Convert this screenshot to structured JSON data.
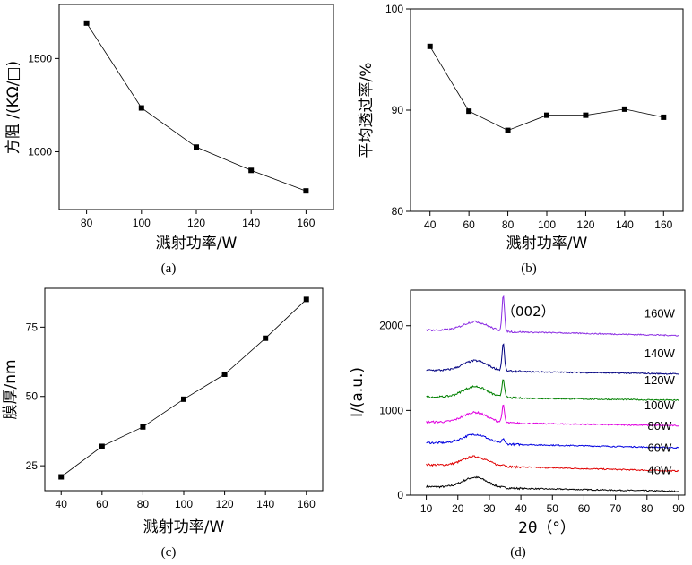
{
  "chart_data": [
    {
      "id": "a",
      "type": "line",
      "caption": "(a)",
      "xlabel": "溅射功率/W",
      "ylabel": "方阻 /(KΩ/□)",
      "x": [
        80,
        100,
        120,
        140,
        160
      ],
      "y": [
        1690,
        1235,
        1025,
        900,
        790
      ],
      "xlim": [
        70,
        170
      ],
      "ylim": [
        690,
        1790
      ],
      "xticks": [
        80,
        100,
        120,
        140,
        160
      ],
      "yticks": [
        1000,
        1500
      ],
      "marker": "square",
      "color": "#000000"
    },
    {
      "id": "b",
      "type": "line",
      "caption": "(b)",
      "xlabel": "溅射功率/W",
      "ylabel": "平均透过率/%",
      "x": [
        40,
        60,
        80,
        100,
        120,
        140,
        160
      ],
      "y": [
        96.3,
        89.9,
        88.0,
        89.5,
        89.5,
        90.1,
        89.3
      ],
      "xlim": [
        30,
        170
      ],
      "ylim": [
        80,
        100
      ],
      "xticks": [
        40,
        60,
        80,
        100,
        120,
        140,
        160
      ],
      "yticks": [
        80,
        90,
        100
      ],
      "marker": "square",
      "color": "#000000"
    },
    {
      "id": "c",
      "type": "line",
      "caption": "(c)",
      "xlabel": "溅射功率/W",
      "ylabel": "膜厚/nm",
      "x": [
        40,
        60,
        80,
        100,
        120,
        140,
        160
      ],
      "y": [
        21,
        32,
        39,
        49,
        58,
        71,
        85
      ],
      "xlim": [
        32,
        168
      ],
      "ylim": [
        16,
        89
      ],
      "xticks": [
        40,
        60,
        80,
        100,
        120,
        140,
        160
      ],
      "yticks": [
        25,
        50,
        75
      ],
      "marker": "square",
      "color": "#000000"
    },
    {
      "id": "d",
      "type": "line",
      "caption": "(d)",
      "xlabel": "2θ（°）",
      "ylabel": "I/(a.u.)",
      "xlim": [
        5,
        92
      ],
      "ylim": [
        0,
        2420
      ],
      "xticks": [
        10,
        20,
        30,
        40,
        50,
        60,
        70,
        80,
        90
      ],
      "yticks": [
        0,
        1000,
        2000
      ],
      "annotation": "（002）",
      "series": [
        {
          "name": "40W",
          "color": "#000000",
          "baseline": 100,
          "hump": 120,
          "tail": -55,
          "peak": 0,
          "noise": 18
        },
        {
          "name": "60W",
          "color": "#e00000",
          "baseline": 360,
          "hump": 110,
          "tail": -75,
          "peak": 25,
          "noise": 18
        },
        {
          "name": "80W",
          "color": "#0000e0",
          "baseline": 620,
          "hump": 110,
          "tail": -60,
          "peak": 60,
          "noise": 18
        },
        {
          "name": "100W",
          "color": "#e000e0",
          "baseline": 865,
          "hump": 120,
          "tail": -45,
          "peak": 200,
          "noise": 18
        },
        {
          "name": "120W",
          "color": "#008000",
          "baseline": 1160,
          "hump": 130,
          "tail": -40,
          "peak": 220,
          "noise": 18
        },
        {
          "name": "140W",
          "color": "#000080",
          "baseline": 1475,
          "hump": 120,
          "tail": -45,
          "peak": 320,
          "noise": 18
        },
        {
          "name": "160W",
          "color": "#8a2be2",
          "baseline": 1950,
          "hump": 110,
          "tail": -65,
          "peak": 420,
          "noise": 18
        }
      ]
    }
  ]
}
